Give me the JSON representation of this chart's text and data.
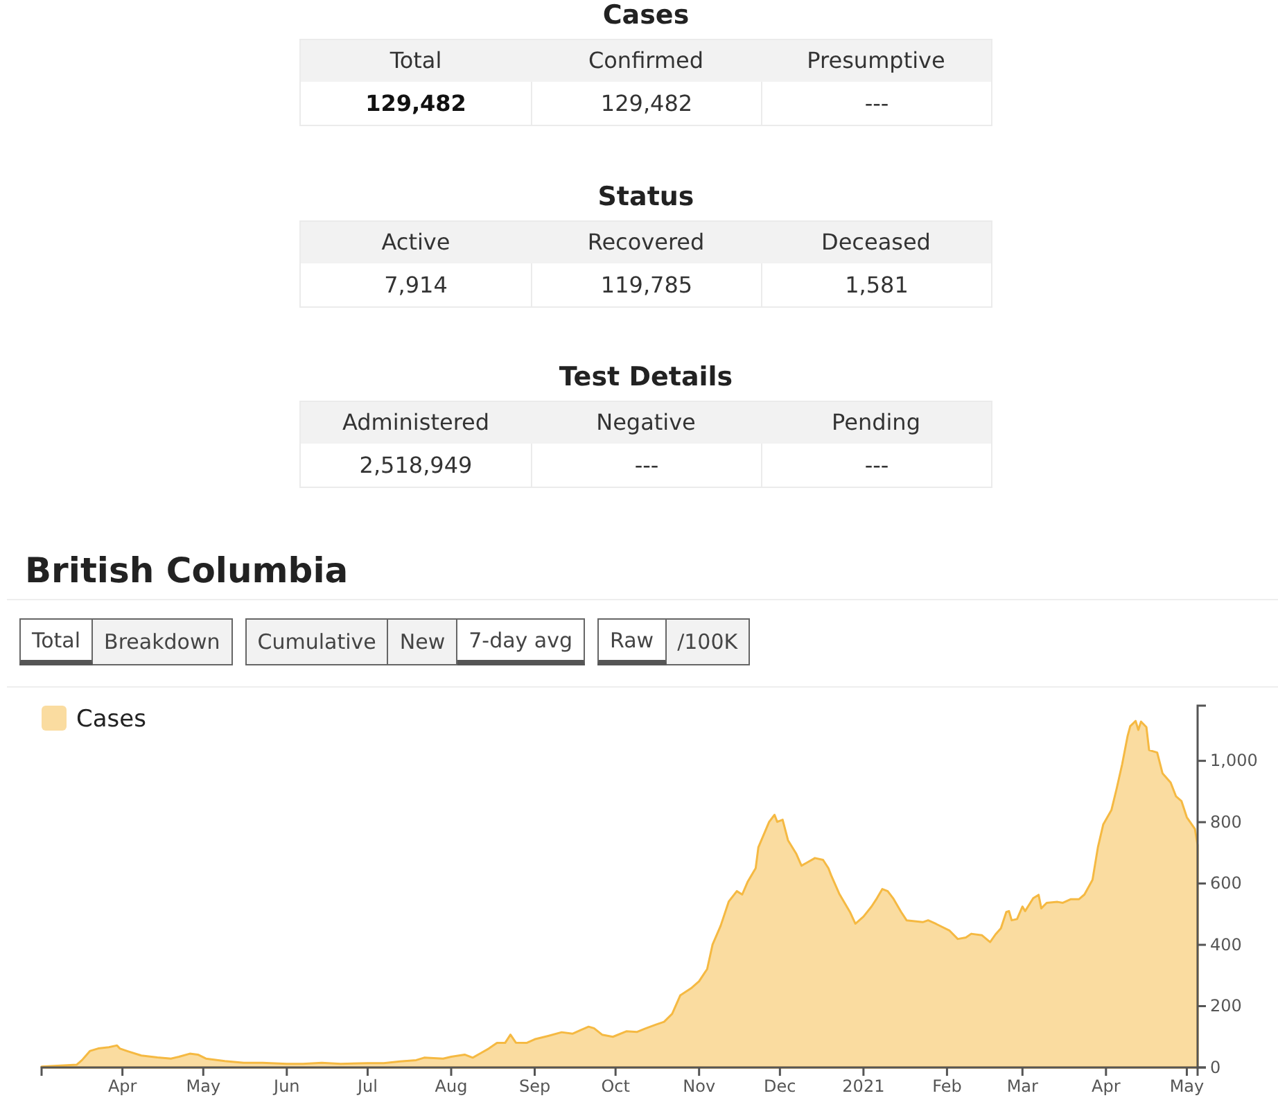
{
  "chart_data": [
    {
      "type": "other",
      "title": "Cases",
      "categories": [
        "Total",
        "Confirmed",
        "Presumptive"
      ],
      "value_labels": [
        "129,482",
        "129,482",
        "---"
      ]
    },
    {
      "type": "other",
      "title": "Status",
      "categories": [
        "Active",
        "Recovered",
        "Deceased"
      ],
      "value_labels": [
        "7,914",
        "119,785",
        "1,581"
      ]
    },
    {
      "type": "other",
      "title": "Test Details",
      "categories": [
        "Administered",
        "Negative",
        "Pending"
      ],
      "value_labels": [
        "2,518,949",
        "---",
        "---"
      ]
    },
    {
      "type": "area",
      "title": "British Columbia",
      "annotations": [
        "Total",
        "Breakdown",
        "Cumulative",
        "New",
        "7-day avg",
        "Raw",
        "/100K"
      ],
      "legend": "top left",
      "xlim": [
        "2020-03-02",
        "2021-05-05"
      ],
      "xticks": [
        {
          "value": "2020-04-01",
          "label": "Apr"
        },
        {
          "value": "2020-05-01",
          "label": "May"
        },
        {
          "value": "2020-06-01",
          "label": "Jun"
        },
        {
          "value": "2020-07-01",
          "label": "Jul"
        },
        {
          "value": "2020-08-01",
          "label": "Aug"
        },
        {
          "value": "2020-09-01",
          "label": "Sep"
        },
        {
          "value": "2020-10-01",
          "label": "Oct"
        },
        {
          "value": "2020-11-01",
          "label": "Nov"
        },
        {
          "value": "2020-12-01",
          "label": "Dec"
        },
        {
          "value": "2021-01-01",
          "label": "2021"
        },
        {
          "value": "2021-02-01",
          "label": "Feb"
        },
        {
          "value": "2021-03-01",
          "label": "Mar"
        },
        {
          "value": "2021-04-01",
          "label": "Apr"
        },
        {
          "value": "2021-05-01",
          "label": "May"
        }
      ],
      "ylim": [
        0,
        1180
      ],
      "yticks": [
        0,
        200,
        400,
        600,
        800,
        {
          "value": 1000,
          "label": "1,000"
        }
      ],
      "x": [
        "2020-03-02",
        "2020-03-15",
        "2020-03-17",
        "2020-03-20",
        "2020-03-23",
        "2020-03-27",
        "2020-03-30",
        "2020-03-31",
        "2020-04-03",
        "2020-04-08",
        "2020-04-14",
        "2020-04-19",
        "2020-04-22",
        "2020-04-26",
        "2020-04-29",
        "2020-05-02",
        "2020-05-09",
        "2020-05-16",
        "2020-05-23",
        "2020-06-01",
        "2020-06-07",
        "2020-06-14",
        "2020-06-21",
        "2020-07-01",
        "2020-07-07",
        "2020-07-13",
        "2020-07-19",
        "2020-07-22",
        "2020-07-29",
        "2020-08-01",
        "2020-08-06",
        "2020-08-09",
        "2020-08-12",
        "2020-08-15",
        "2020-08-18",
        "2020-08-21",
        "2020-08-23",
        "2020-08-25",
        "2020-08-29",
        "2020-09-01",
        "2020-09-06",
        "2020-09-11",
        "2020-09-15",
        "2020-09-18",
        "2020-09-21",
        "2020-09-23",
        "2020-09-26",
        "2020-09-30",
        "2020-10-05",
        "2020-10-09",
        "2020-10-12",
        "2020-10-16",
        "2020-10-19",
        "2020-10-22",
        "2020-10-25",
        "2020-10-29",
        "2020-11-01",
        "2020-11-04",
        "2020-11-06",
        "2020-11-09",
        "2020-11-12",
        "2020-11-15",
        "2020-11-17",
        "2020-11-19",
        "2020-11-22",
        "2020-11-23",
        "2020-11-27",
        "2020-11-29",
        "2020-11-30",
        "2020-12-02",
        "2020-12-04",
        "2020-12-07",
        "2020-12-09",
        "2020-12-11",
        "2020-12-14",
        "2020-12-17",
        "2020-12-19",
        "2020-12-20",
        "2020-12-23",
        "2020-12-27",
        "2020-12-29",
        "2021-01-01",
        "2021-01-04",
        "2021-01-06",
        "2021-01-08",
        "2021-01-10",
        "2021-01-12",
        "2021-01-15",
        "2021-01-17",
        "2021-01-20",
        "2021-01-23",
        "2021-01-25",
        "2021-01-28",
        "2021-02-02",
        "2021-02-05",
        "2021-02-08",
        "2021-02-10",
        "2021-02-14",
        "2021-02-17",
        "2021-02-19",
        "2021-02-21",
        "2021-02-23",
        "2021-02-24",
        "2021-02-25",
        "2021-02-27",
        "2021-03-01",
        "2021-03-02",
        "2021-03-05",
        "2021-03-07",
        "2021-03-08",
        "2021-03-10",
        "2021-03-14",
        "2021-03-16",
        "2021-03-19",
        "2021-03-22",
        "2021-03-24",
        "2021-03-27",
        "2021-03-29",
        "2021-03-31",
        "2021-04-03",
        "2021-04-05",
        "2021-04-07",
        "2021-04-09",
        "2021-04-10",
        "2021-04-12",
        "2021-04-13",
        "2021-04-14",
        "2021-04-16",
        "2021-04-17",
        "2021-04-20",
        "2021-04-22",
        "2021-04-25",
        "2021-04-27",
        "2021-04-29",
        "2021-05-01",
        "2021-05-04",
        "2021-05-05"
      ],
      "series": [
        {
          "name": "Cases",
          "color": "#f5b942",
          "values": [
            3,
            9,
            24,
            54,
            62,
            66,
            72,
            62,
            53,
            39,
            33,
            29,
            35,
            45,
            42,
            29,
            21,
            15,
            15,
            12,
            12,
            15,
            12,
            14,
            14,
            20,
            24,
            32,
            29,
            35,
            42,
            32,
            47,
            62,
            80,
            80,
            107,
            81,
            80,
            92,
            103,
            115,
            110,
            122,
            133,
            128,
            107,
            100,
            118,
            116,
            127,
            140,
            149,
            175,
            235,
            258,
            281,
            321,
            401,
            462,
            541,
            575,
            564,
            605,
            650,
            718,
            801,
            824,
            801,
            808,
            741,
            698,
            658,
            668,
            683,
            677,
            650,
            627,
            567,
            507,
            469,
            492,
            525,
            552,
            582,
            575,
            552,
            507,
            480,
            477,
            474,
            480,
            468,
            446,
            419,
            424,
            436,
            431,
            409,
            434,
            454,
            507,
            510,
            480,
            484,
            525,
            510,
            552,
            563,
            519,
            537,
            540,
            537,
            549,
            549,
            564,
            612,
            718,
            793,
            839,
            911,
            989,
            1080,
            1113,
            1130,
            1101,
            1128,
            1110,
            1035,
            1027,
            959,
            929,
            884,
            869,
            816,
            778,
            725
          ]
        }
      ]
    }
  ]
}
